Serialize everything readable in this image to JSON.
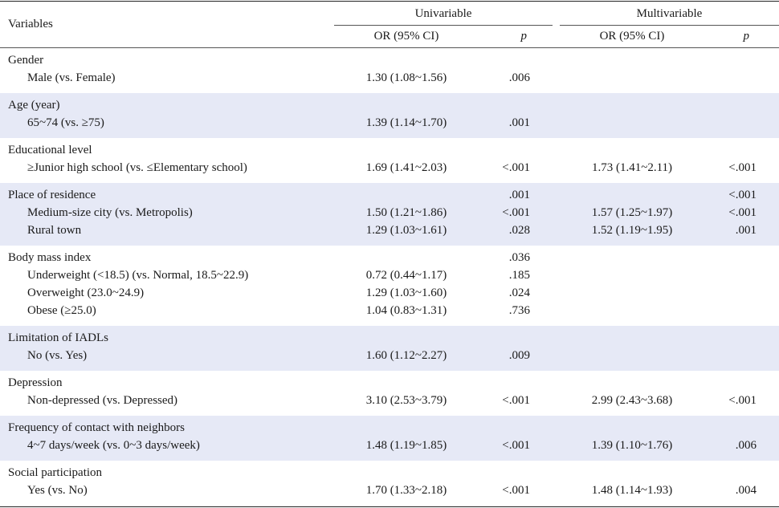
{
  "header": {
    "variables": "Variables",
    "univariable": "Univariable",
    "multivariable": "Multivariable",
    "or_ci": "OR (95% CI)",
    "p": "p"
  },
  "groups": [
    {
      "title": "Gender",
      "shaded": false,
      "rows": [
        {
          "label": "Male (vs. Female)",
          "or_u": "1.30 (1.08~1.56)",
          "p_u": ".006",
          "or_m": "",
          "p_m": ""
        }
      ]
    },
    {
      "title": "Age (year)",
      "shaded": true,
      "rows": [
        {
          "label": "65~74 (vs. ≥75)",
          "or_u": "1.39 (1.14~1.70)",
          "p_u": ".001",
          "or_m": "",
          "p_m": ""
        }
      ]
    },
    {
      "title": "Educational level",
      "shaded": false,
      "rows": [
        {
          "label": "≥Junior high school (vs. ≤Elementary school)",
          "or_u": "1.69 (1.41~2.03)",
          "p_u": "<.001",
          "or_m": "1.73 (1.41~2.11)",
          "p_m": "<.001"
        }
      ]
    },
    {
      "title": "Place of residence",
      "shaded": true,
      "title_p_u": ".001",
      "title_p_m": "<.001",
      "rows": [
        {
          "label": "Medium-size city (vs. Metropolis)",
          "or_u": "1.50 (1.21~1.86)",
          "p_u": "<.001",
          "or_m": "1.57 (1.25~1.97)",
          "p_m": "<.001"
        },
        {
          "label": "Rural town",
          "or_u": "1.29 (1.03~1.61)",
          "p_u": ".028",
          "or_m": "1.52 (1.19~1.95)",
          "p_m": ".001"
        }
      ]
    },
    {
      "title": "Body mass index",
      "shaded": false,
      "title_p_u": ".036",
      "title_p_m": "",
      "rows": [
        {
          "label": "Underweight (<18.5) (vs. Normal, 18.5~22.9)",
          "or_u": "0.72 (0.44~1.17)",
          "p_u": ".185",
          "or_m": "",
          "p_m": ""
        },
        {
          "label": "Overweight (23.0~24.9)",
          "or_u": "1.29 (1.03~1.60)",
          "p_u": ".024",
          "or_m": "",
          "p_m": ""
        },
        {
          "label": "Obese (≥25.0)",
          "or_u": "1.04 (0.83~1.31)",
          "p_u": ".736",
          "or_m": "",
          "p_m": ""
        }
      ]
    },
    {
      "title": "Limitation of IADLs",
      "shaded": true,
      "rows": [
        {
          "label": "No (vs. Yes)",
          "or_u": "1.60 (1.12~2.27)",
          "p_u": ".009",
          "or_m": "",
          "p_m": ""
        }
      ]
    },
    {
      "title": "Depression",
      "shaded": false,
      "rows": [
        {
          "label": "Non-depressed (vs. Depressed)",
          "or_u": "3.10 (2.53~3.79)",
          "p_u": "<.001",
          "or_m": "2.99 (2.43~3.68)",
          "p_m": "<.001"
        }
      ]
    },
    {
      "title": "Frequency of contact with neighbors",
      "shaded": true,
      "rows": [
        {
          "label": "4~7 days/week (vs. 0~3 days/week)",
          "or_u": "1.48 (1.19~1.85)",
          "p_u": "<.001",
          "or_m": "1.39 (1.10~1.76)",
          "p_m": ".006"
        }
      ]
    },
    {
      "title": "Social participation",
      "shaded": false,
      "rows": [
        {
          "label": "Yes (vs. No)",
          "or_u": "1.70 (1.33~2.18)",
          "p_u": "<.001",
          "or_m": "1.48 (1.14~1.93)",
          "p_m": ".004"
        }
      ]
    }
  ]
}
